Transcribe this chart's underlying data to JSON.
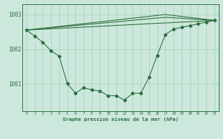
{
  "title": "Graphe pression niveau de la mer (hPa)",
  "background_color": "#cce8dc",
  "grid_color": "#aacfbe",
  "line_color": "#2d6e3e",
  "xlim": [
    -0.5,
    23.5
  ],
  "ylim": [
    1000.2,
    1003.3
  ],
  "yticks": [
    1001,
    1002,
    1003
  ],
  "ytick_labels": [
    "1001",
    "1002",
    "1003"
  ],
  "xticks": [
    0,
    1,
    2,
    3,
    4,
    5,
    6,
    7,
    8,
    9,
    10,
    11,
    12,
    13,
    14,
    15,
    16,
    17,
    18,
    19,
    20,
    21,
    22,
    23
  ],
  "series1_x": [
    0,
    1,
    2,
    3,
    4,
    5,
    6,
    7,
    8,
    9,
    10,
    11,
    12,
    13,
    14,
    15,
    16,
    17,
    18,
    19,
    20,
    21,
    22,
    23
  ],
  "series1_y": [
    1002.55,
    1002.38,
    1002.2,
    1001.95,
    1001.8,
    1001.0,
    1000.72,
    1000.88,
    1000.82,
    1000.78,
    1000.65,
    1000.65,
    1000.52,
    1000.72,
    1000.72,
    1001.18,
    1001.82,
    1002.42,
    1002.58,
    1002.63,
    1002.68,
    1002.73,
    1002.78,
    1002.83
  ],
  "env_line1_x": [
    0,
    23
  ],
  "env_line1_y": [
    1002.55,
    1002.83
  ],
  "env_line2_x": [
    0,
    17,
    23
  ],
  "env_line2_y": [
    1002.55,
    1003.0,
    1002.83
  ],
  "env_line3_x": [
    0,
    17,
    23
  ],
  "env_line3_y": [
    1002.55,
    1002.92,
    1002.83
  ]
}
